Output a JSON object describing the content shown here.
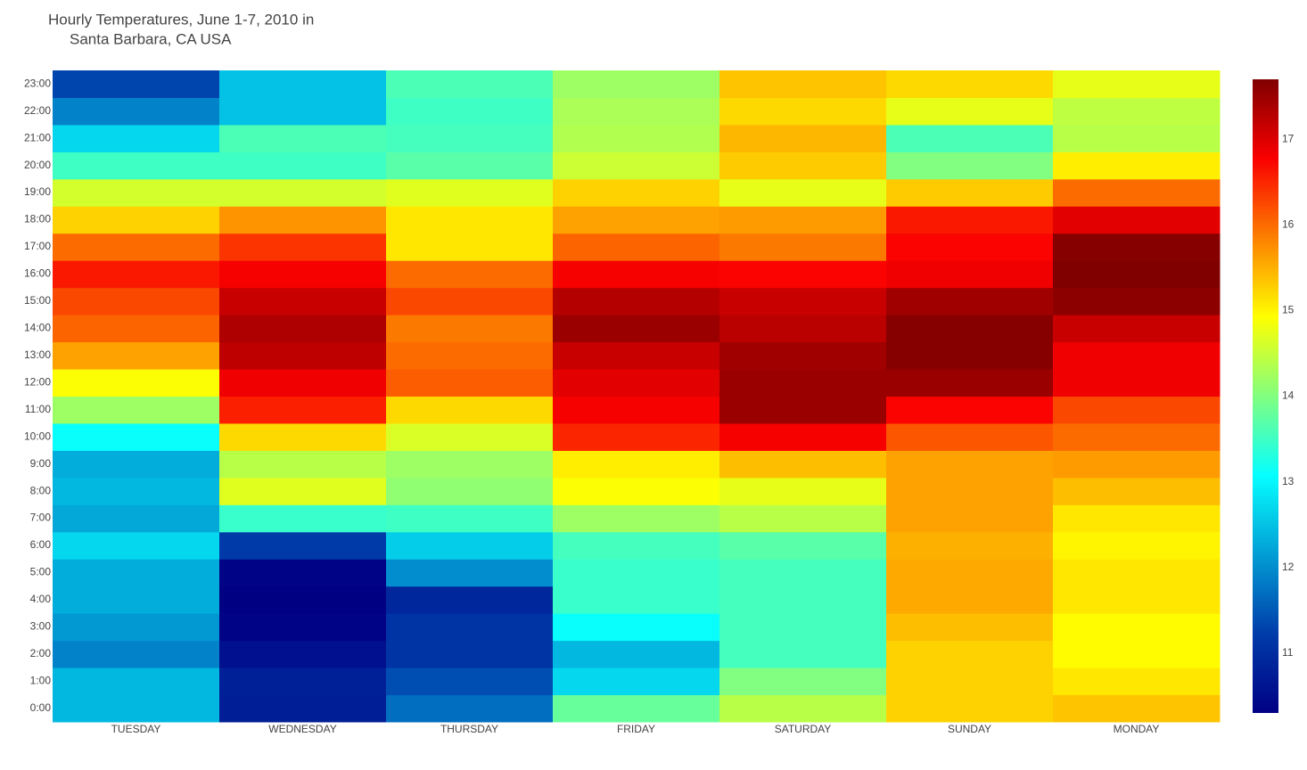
{
  "chart_data": {
    "type": "heatmap",
    "title": [
      "Hourly Temperatures, June 1-7, 2010 in",
      "Santa Barbara, CA USA"
    ],
    "x": [
      "TUESDAY",
      "WEDNESDAY",
      "THURSDAY",
      "FRIDAY",
      "SATURDAY",
      "SUNDAY",
      "MONDAY"
    ],
    "y": [
      "0:00",
      "1:00",
      "2:00",
      "3:00",
      "4:00",
      "5:00",
      "6:00",
      "7:00",
      "8:00",
      "9:00",
      "10:00",
      "11:00",
      "12:00",
      "13:00",
      "14:00",
      "15:00",
      "16:00",
      "17:00",
      "18:00",
      "19:00",
      "20:00",
      "21:00",
      "22:00",
      "23:00"
    ],
    "z": [
      [
        12.4,
        10.76,
        11.7,
        13.8,
        14.4,
        15.25,
        15.35
      ],
      [
        12.4,
        10.8,
        11.4,
        12.7,
        14.0,
        15.25,
        15.1
      ],
      [
        11.9,
        10.55,
        11.1,
        12.4,
        13.55,
        15.25,
        14.95
      ],
      [
        12.1,
        10.35,
        11.1,
        13.1,
        13.55,
        15.4,
        14.95
      ],
      [
        12.3,
        10.3,
        10.9,
        13.45,
        13.55,
        15.55,
        15.1
      ],
      [
        12.3,
        10.35,
        12.0,
        13.45,
        13.55,
        15.55,
        15.1
      ],
      [
        12.7,
        11.2,
        12.6,
        13.55,
        13.7,
        15.5,
        15.0
      ],
      [
        12.25,
        13.45,
        13.5,
        14.2,
        14.4,
        15.6,
        15.1
      ],
      [
        12.4,
        14.7,
        14.1,
        14.9,
        14.75,
        15.6,
        15.4
      ],
      [
        12.3,
        14.4,
        14.2,
        15.05,
        15.4,
        15.6,
        15.65
      ],
      [
        13.1,
        15.2,
        14.65,
        16.5,
        16.8,
        16.15,
        16.0
      ],
      [
        14.2,
        16.55,
        15.2,
        16.8,
        17.5,
        16.75,
        16.25
      ],
      [
        14.9,
        16.85,
        16.1,
        16.95,
        17.5,
        17.5,
        16.85
      ],
      [
        15.6,
        17.23,
        16.0,
        17.15,
        17.45,
        17.65,
        16.85
      ],
      [
        16.05,
        17.35,
        15.9,
        17.5,
        17.25,
        17.65,
        17.15
      ],
      [
        16.25,
        17.15,
        16.25,
        17.3,
        17.15,
        17.45,
        17.6
      ],
      [
        16.6,
        16.8,
        16.0,
        16.8,
        16.75,
        16.85,
        17.7
      ],
      [
        16.0,
        16.4,
        15.1,
        16.05,
        15.9,
        16.75,
        17.65
      ],
      [
        15.25,
        15.7,
        15.1,
        15.6,
        15.65,
        16.6,
        16.95
      ],
      [
        14.6,
        14.6,
        14.7,
        15.25,
        14.75,
        15.3,
        16.0
      ],
      [
        13.5,
        13.5,
        13.7,
        14.55,
        15.3,
        14.0,
        15.05
      ],
      [
        12.7,
        13.6,
        13.55,
        14.35,
        15.45,
        13.6,
        14.4
      ],
      [
        11.9,
        12.5,
        13.5,
        14.3,
        15.2,
        14.75,
        14.45
      ],
      [
        11.3,
        12.5,
        13.6,
        14.2,
        15.35,
        15.2,
        14.75
      ]
    ],
    "zlim": [
      10.3,
      17.7
    ],
    "colorbar_ticks": [
      11,
      12,
      13,
      14,
      15,
      16,
      17
    ],
    "colorscale": [
      [
        0,
        "#000083"
      ],
      [
        0.125,
        "#003caa"
      ],
      [
        0.375,
        "#05ffff"
      ],
      [
        0.625,
        "#ffff00"
      ],
      [
        0.875,
        "#fa0000"
      ],
      [
        1,
        "#800000"
      ]
    ]
  }
}
